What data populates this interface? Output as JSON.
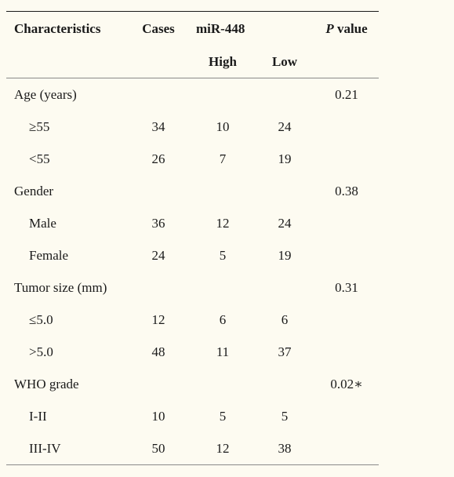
{
  "header": {
    "characteristics": "Characteristics",
    "cases": "Cases",
    "mir": "miR-448",
    "p_italic": "P",
    "p_rest": " value",
    "high": "High",
    "low": "Low"
  },
  "groups": [
    {
      "label": "Age (years)",
      "p": "0.21",
      "rows": [
        {
          "label": "≥55",
          "cases": "34",
          "high": "10",
          "low": "24"
        },
        {
          "label": "<55",
          "cases": "26",
          "high": "7",
          "low": "19"
        }
      ]
    },
    {
      "label": "Gender",
      "p": "0.38",
      "rows": [
        {
          "label": "Male",
          "cases": "36",
          "high": "12",
          "low": "24"
        },
        {
          "label": "Female",
          "cases": "24",
          "high": "5",
          "low": "19"
        }
      ]
    },
    {
      "label": "Tumor size (mm)",
      "p": "0.31",
      "rows": [
        {
          "label": "≤5.0",
          "cases": "12",
          "high": "6",
          "low": "6"
        },
        {
          "label": ">5.0",
          "cases": "48",
          "high": "11",
          "low": "37"
        }
      ]
    },
    {
      "label": "WHO grade",
      "p": "0.02∗",
      "rows": [
        {
          "label": "I-II",
          "cases": "10",
          "high": "5",
          "low": "5"
        },
        {
          "label": "III-IV",
          "cases": "50",
          "high": "12",
          "low": "38"
        }
      ]
    }
  ]
}
